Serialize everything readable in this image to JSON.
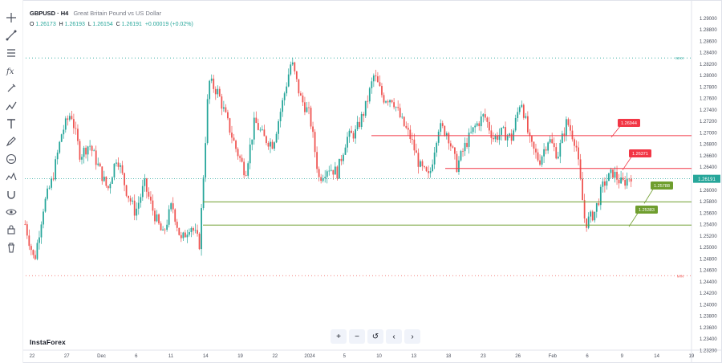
{
  "symbol": "GBPUSD · H4",
  "description": "Great Britain Pound vs US Dollar",
  "ohlc": {
    "o_label": "O",
    "o": "1.26173",
    "h_label": "H",
    "h": "1.26193",
    "l_label": "L",
    "l": "1.26154",
    "c_label": "C",
    "c": "1.26191",
    "change": "+0.00019 (+0.02%)"
  },
  "brand": "InstaForex",
  "current_price": "1.26191",
  "max_label": "MAX",
  "min_label": "MIN",
  "toolbar_icons": [
    "crosshair-icon",
    "trend-line-icon",
    "fib-icon",
    "fx-icon",
    "brush-icon",
    "pattern-icon",
    "text-icon",
    "pencil-icon",
    "face-icon",
    "ruler-icon",
    "magnet-icon",
    "eye-icon",
    "lock-icon",
    "trash-icon"
  ],
  "nav_buttons": [
    "+",
    "−",
    "↺",
    "‹",
    "›"
  ],
  "colors": {
    "up": "#26a69a",
    "down": "#ef5350",
    "resistance": "#f23645",
    "support": "#6f9e2e",
    "price_tag": "#26a69a"
  },
  "chart_data": {
    "type": "candlestick",
    "ylim": [
      1.232,
      1.292
    ],
    "y_ticks": [
      "1.29000",
      "1.28800",
      "1.28600",
      "1.28400",
      "1.28200",
      "1.28000",
      "1.27800",
      "1.27600",
      "1.27400",
      "1.27200",
      "1.27000",
      "1.26800",
      "1.26600",
      "1.26400",
      "1.26200",
      "1.26000",
      "1.25800",
      "1.25600",
      "1.25400",
      "1.25200",
      "1.25000",
      "1.24800",
      "1.24600",
      "1.24400",
      "1.24200",
      "1.24000",
      "1.23800",
      "1.23600",
      "1.23400",
      "1.23200"
    ],
    "x_ticks": [
      "22",
      "27",
      "Dec",
      "6",
      "11",
      "14",
      "19",
      "22",
      "2024",
      "5",
      "10",
      "13",
      "18",
      "23",
      "26",
      "Feb",
      "6",
      "9",
      "14",
      "19"
    ],
    "levels": [
      {
        "value": 1.26944,
        "label": "1.26944",
        "kind": "resistance"
      },
      {
        "value": 1.26371,
        "label": "1.26371",
        "kind": "resistance"
      },
      {
        "value": 1.25788,
        "label": "1.25788",
        "kind": "support"
      },
      {
        "value": 1.25383,
        "label": "1.25383",
        "kind": "support"
      }
    ],
    "max_value": 1.283,
    "min_value": 1.245,
    "path": [
      1.254,
      1.2475,
      1.257,
      1.262,
      1.27,
      1.2735,
      1.266,
      1.268,
      1.264,
      1.26,
      1.266,
      1.26,
      1.256,
      1.261,
      1.256,
      1.252,
      1.2575,
      1.251,
      1.254,
      1.2505,
      1.279,
      1.277,
      1.272,
      1.267,
      1.263,
      1.272,
      1.269,
      1.268,
      1.275,
      1.2825,
      1.276,
      1.273,
      1.262,
      1.264,
      1.263,
      1.269,
      1.27,
      1.274,
      1.28,
      1.276,
      1.276,
      1.272,
      1.269,
      1.264,
      1.262,
      1.271,
      1.27,
      1.264,
      1.268,
      1.271,
      1.273,
      1.269,
      1.27,
      1.269,
      1.276,
      1.268,
      1.265,
      1.269,
      1.266,
      1.272,
      1.268,
      1.254,
      1.256,
      1.261,
      1.263,
      1.261,
      1.2625
    ]
  }
}
